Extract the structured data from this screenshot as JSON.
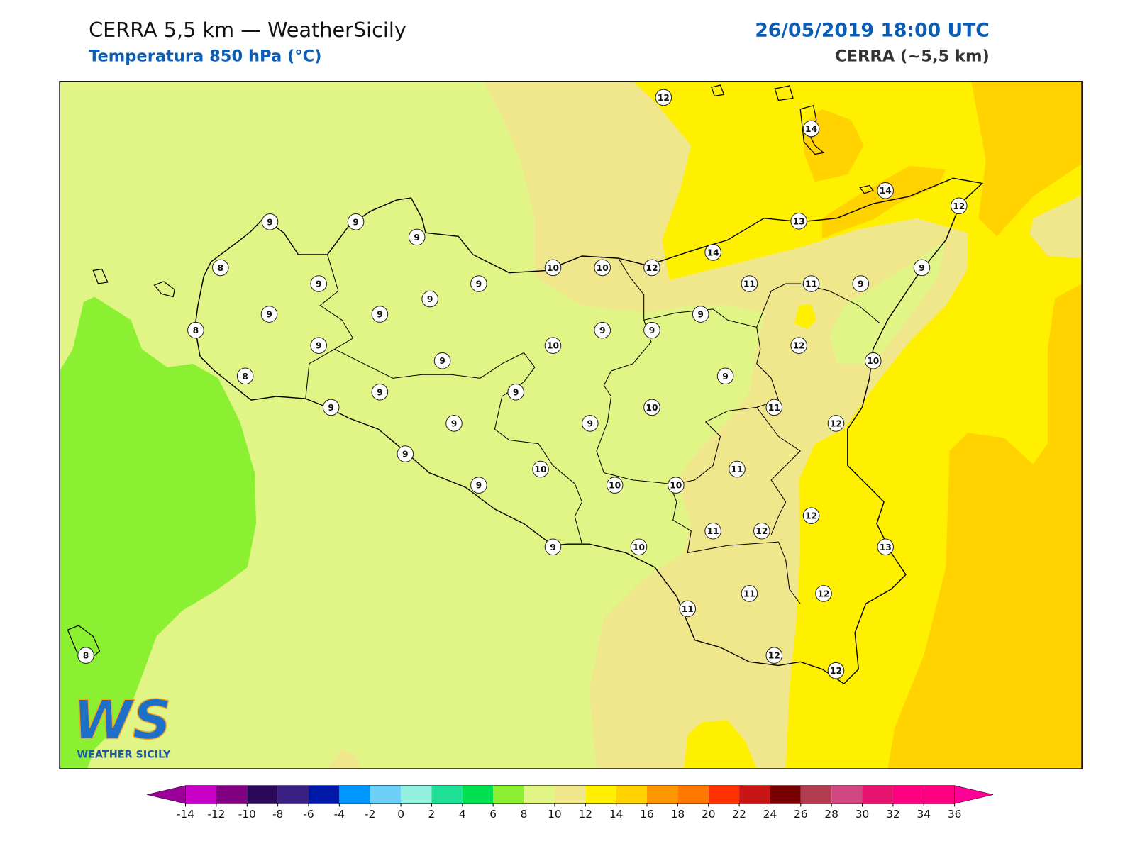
{
  "header": {
    "title": "CERRA 5,5 km — WeatherSicily",
    "subtitle": "Temperatura 850 hPa (°C)",
    "datetime": "26/05/2019 18:00 UTC",
    "model": "CERRA (~5,5 km)"
  },
  "stations": [
    12,
    14,
    14,
    12,
    13,
    14,
    9,
    9,
    9,
    8,
    9,
    9,
    10,
    10,
    12,
    11,
    11,
    9,
    9,
    9,
    9,
    9,
    8,
    9,
    10,
    9,
    9,
    9,
    12,
    10,
    8,
    9,
    9,
    9,
    9,
    9,
    9,
    9,
    10,
    11,
    12,
    9,
    10,
    11,
    9,
    10,
    10,
    12,
    11,
    12,
    9,
    10,
    13,
    11,
    11,
    12,
    8,
    12,
    12
  ],
  "colorbar": {
    "ticks": [
      -14,
      -12,
      -10,
      -8,
      -6,
      -4,
      -2,
      0,
      2,
      4,
      6,
      8,
      10,
      12,
      14,
      16,
      18,
      20,
      22,
      24,
      26,
      28,
      30,
      32,
      34,
      36
    ],
    "colors": [
      "#c800c8",
      "#800080",
      "#2c0a5a",
      "#3a2080",
      "#0018a8",
      "#0096ff",
      "#6ed0f8",
      "#96f0e0",
      "#1ee096",
      "#00e050",
      "#8cf032",
      "#e1f587",
      "#f0e68c",
      "#fff000",
      "#ffd200",
      "#ff9600",
      "#ff7800",
      "#ff3200",
      "#c81414",
      "#780000",
      "#b43c50",
      "#d24682",
      "#e6146e",
      "#ff0080",
      "#ff0080"
    ],
    "under": "#9b009b",
    "over": "#ff0096"
  },
  "logo": {
    "mark": "WS",
    "text": "WEATHER SICILY"
  }
}
